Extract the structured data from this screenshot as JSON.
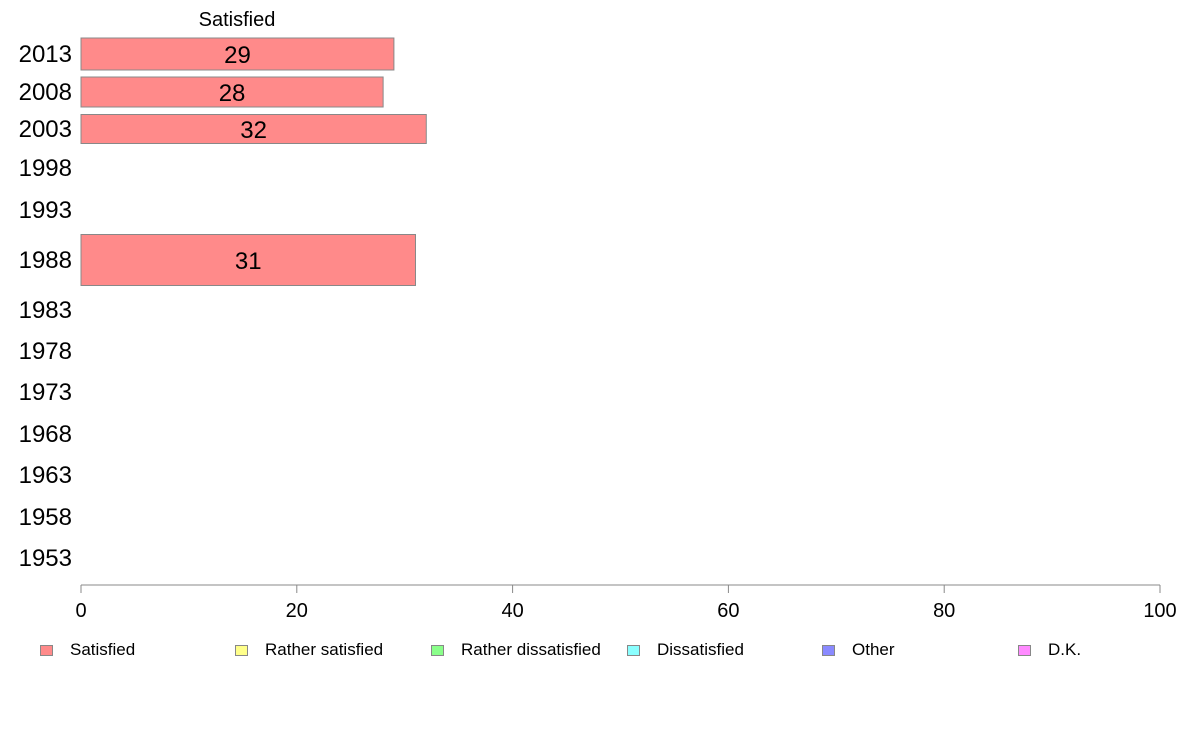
{
  "chart_data": {
    "type": "bar",
    "orientation": "horizontal",
    "stacked": true,
    "title": "",
    "column_title": "Satisfied",
    "xlabel": "",
    "ylabel": "",
    "xlim": [
      0,
      100
    ],
    "xticks": [
      "0",
      "20",
      "40",
      "60",
      "80",
      "100"
    ],
    "grid": false,
    "legend_position": "bottom",
    "categories": [
      "2013",
      "2008",
      "2003",
      "1998",
      "1993",
      "1988",
      "1983",
      "1978",
      "1973",
      "1968",
      "1963",
      "1958",
      "1953"
    ],
    "series": [
      {
        "name": "Satisfied",
        "color": "#ff8a8a",
        "values": [
          29,
          28,
          32,
          null,
          null,
          31,
          null,
          null,
          null,
          null,
          null,
          null,
          null
        ],
        "labels": [
          "29",
          "28",
          "32",
          "",
          "",
          "31",
          "",
          "",
          "",
          "",
          "",
          "",
          ""
        ]
      },
      {
        "name": "Rather satisfied",
        "color": "#ffff8a",
        "values": [
          null,
          null,
          null,
          null,
          null,
          null,
          null,
          null,
          null,
          null,
          null,
          null,
          null
        ]
      },
      {
        "name": "Rather dissatisfied",
        "color": "#8aff8a",
        "values": [
          null,
          null,
          null,
          null,
          null,
          null,
          null,
          null,
          null,
          null,
          null,
          null,
          null
        ]
      },
      {
        "name": "Dissatisfied",
        "color": "#8affff",
        "values": [
          null,
          null,
          null,
          null,
          null,
          null,
          null,
          null,
          null,
          null,
          null,
          null,
          null
        ]
      },
      {
        "name": "Other",
        "color": "#8a8aff",
        "values": [
          null,
          null,
          null,
          null,
          null,
          null,
          null,
          null,
          null,
          null,
          null,
          null,
          null
        ]
      },
      {
        "name": "D.K.",
        "color": "#ff8aff",
        "values": [
          null,
          null,
          null,
          null,
          null,
          null,
          null,
          null,
          null,
          null,
          null,
          null,
          null
        ]
      }
    ]
  }
}
